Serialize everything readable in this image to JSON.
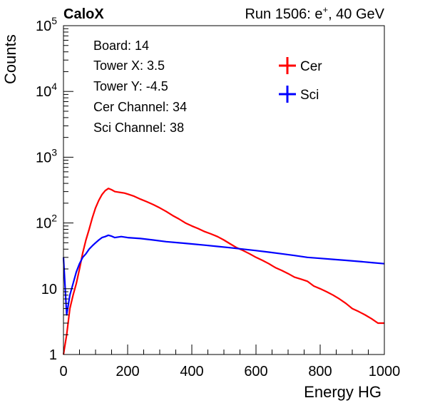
{
  "chart_data": {
    "type": "line",
    "title_left": "CaloX",
    "title_right_prefix": "Run 1506: e",
    "title_right_sup": "+",
    "title_right_suffix": ", 40 GeV",
    "xlabel": "Energy HG",
    "ylabel": "Counts",
    "xlim": [
      0,
      1000
    ],
    "ylim": [
      1,
      100000
    ],
    "y_scale": "log",
    "x_ticks": [
      "0",
      "200",
      "400",
      "600",
      "800",
      "1000"
    ],
    "y_ticks": [
      {
        "base": "1",
        "exp": ""
      },
      {
        "base": "10",
        "exp": ""
      },
      {
        "base": "10",
        "exp": "2"
      },
      {
        "base": "10",
        "exp": "3"
      },
      {
        "base": "10",
        "exp": "4"
      },
      {
        "base": "10",
        "exp": "5"
      }
    ],
    "info_lines": [
      "Board: 14",
      "Tower X: 3.5",
      "Tower Y: -4.5",
      "Cer Channel: 34",
      "Sci Channel: 38"
    ],
    "legend_position": "top-right",
    "series": [
      {
        "name": "Cer",
        "color": "#ff0000",
        "x": [
          0,
          10,
          20,
          30,
          40,
          50,
          60,
          70,
          80,
          90,
          100,
          110,
          120,
          130,
          140,
          150,
          160,
          170,
          180,
          190,
          200,
          220,
          240,
          260,
          280,
          300,
          320,
          340,
          360,
          380,
          400,
          420,
          440,
          460,
          480,
          500,
          520,
          540,
          560,
          580,
          600,
          620,
          640,
          660,
          680,
          700,
          720,
          740,
          760,
          780,
          800,
          820,
          840,
          860,
          880,
          900,
          920,
          940,
          960,
          980,
          1000
        ],
        "y": [
          1,
          2,
          5,
          8,
          12,
          20,
          35,
          55,
          80,
          120,
          170,
          220,
          270,
          310,
          335,
          320,
          300,
          295,
          290,
          285,
          275,
          255,
          230,
          210,
          190,
          170,
          150,
          130,
          115,
          100,
          90,
          82,
          74,
          68,
          62,
          55,
          48,
          42,
          38,
          34,
          30,
          27,
          24,
          21,
          19,
          17,
          15,
          14,
          13,
          11,
          10,
          9,
          8,
          7,
          6,
          5,
          4.5,
          4,
          3.5,
          3,
          3
        ]
      },
      {
        "name": "Sci",
        "color": "#0000ff",
        "x": [
          0,
          10,
          20,
          30,
          40,
          50,
          60,
          70,
          80,
          90,
          100,
          110,
          120,
          130,
          140,
          150,
          160,
          180,
          200,
          240,
          280,
          320,
          360,
          400,
          440,
          480,
          520,
          560,
          600,
          640,
          680,
          720,
          760,
          800,
          840,
          880,
          920,
          960,
          1000
        ],
        "y": [
          30,
          4,
          8,
          12,
          18,
          24,
          30,
          34,
          40,
          45,
          50,
          55,
          60,
          62,
          65,
          63,
          60,
          62,
          60,
          58,
          55,
          52,
          50,
          48,
          46,
          44,
          42,
          40,
          38,
          36,
          34,
          32,
          30,
          29,
          28,
          27,
          26,
          25,
          24
        ]
      }
    ]
  }
}
